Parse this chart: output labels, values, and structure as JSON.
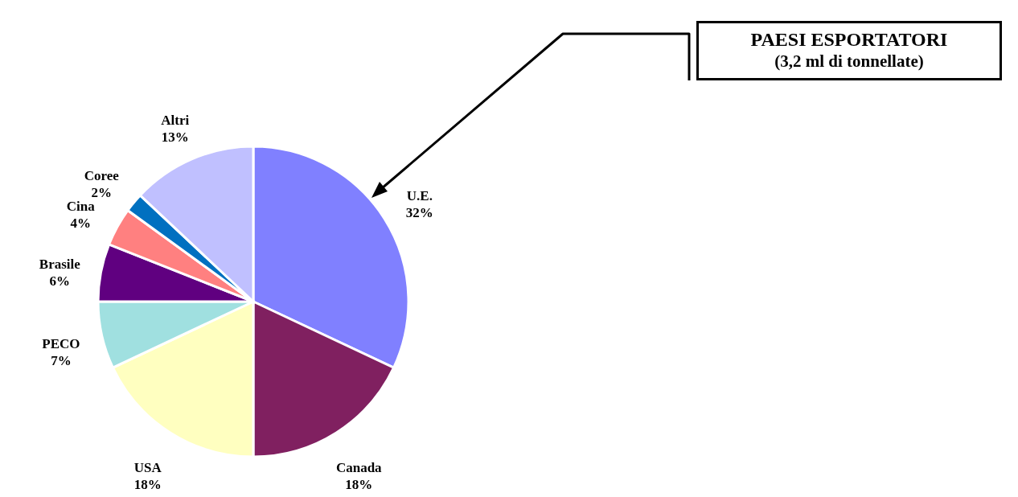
{
  "chart_data": {
    "type": "pie",
    "title": "PAESI ESPORTATORI",
    "subtitle": "(3,2 ml di tonnellate)",
    "categories": [
      "U.E.",
      "Canada",
      "USA",
      "PECO",
      "Brasile",
      "Cina",
      "Coree",
      "Altri"
    ],
    "values": [
      32,
      18,
      18,
      7,
      6,
      4,
      2,
      13
    ],
    "value_labels": [
      "32%",
      "18%",
      "18%",
      "7%",
      "6%",
      "4%",
      "2%",
      "13%"
    ],
    "colors": [
      "#8080ff",
      "#802060",
      "#ffffc0",
      "#a0e0e0",
      "#600080",
      "#ff8080",
      "#0070c0",
      "#c0c0ff"
    ]
  }
}
